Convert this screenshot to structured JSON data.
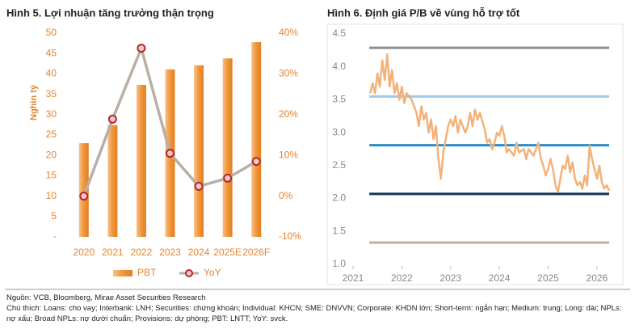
{
  "chart_data": [
    {
      "type": "combo",
      "title": "Hình 5. Lợi nhuận tăng trưởng thận trọng",
      "ylabel": "Nghìn tỷ",
      "categories": [
        "2020",
        "2021",
        "2022",
        "2023",
        "2024",
        "2025E",
        "2026F"
      ],
      "series": [
        {
          "name": "PBT",
          "type": "bar",
          "color": "#f0963a",
          "values": [
            23.0,
            27.4,
            37.3,
            41.1,
            42.1,
            43.8,
            47.8
          ]
        },
        {
          "name": "YoY",
          "type": "line",
          "axis": "y2",
          "color": "#b9afa6",
          "marker_color": "#b3262b",
          "values": [
            0,
            18.9,
            36.3,
            10.5,
            2.4,
            4.4,
            8.5
          ]
        }
      ],
      "ylim": [
        0,
        50
      ],
      "yticks": [
        {
          "value": 0,
          "label": "-"
        },
        5,
        10,
        15,
        20,
        25,
        30,
        35,
        40,
        45,
        50
      ],
      "y2lim": [
        -10,
        40
      ],
      "y2ticks": [
        {
          "value": -10,
          "label": "-10%"
        },
        {
          "value": 0,
          "label": "0%"
        },
        {
          "value": 10,
          "label": "10%"
        },
        {
          "value": 20,
          "label": "20%"
        },
        {
          "value": 30,
          "label": "30%"
        },
        {
          "value": 40,
          "label": "40%"
        }
      ],
      "legend": "bottom",
      "axis_color": "#e8842c"
    },
    {
      "type": "line",
      "title": "Hình 6. Định giá P/B về vùng hỗ trợ tốt",
      "color": "#f2b27a",
      "x": [
        2021.35,
        2021.4,
        2021.45,
        2021.5,
        2021.55,
        2021.6,
        2021.65,
        2021.7,
        2021.75,
        2021.8,
        2021.85,
        2021.9,
        2021.95,
        2022.0,
        2022.05,
        2022.1,
        2022.2,
        2022.3,
        2022.35,
        2022.4,
        2022.45,
        2022.5,
        2022.55,
        2022.6,
        2022.65,
        2022.7,
        2022.75,
        2022.8,
        2022.85,
        2022.9,
        2022.95,
        2023.0,
        2023.05,
        2023.1,
        2023.15,
        2023.2,
        2023.3,
        2023.35,
        2023.4,
        2023.45,
        2023.5,
        2023.55,
        2023.6,
        2023.7,
        2023.75,
        2023.8,
        2023.85,
        2023.9,
        2023.95,
        2024.0,
        2024.05,
        2024.1,
        2024.15,
        2024.2,
        2024.3,
        2024.35,
        2024.4,
        2024.5,
        2024.55,
        2024.6,
        2024.7,
        2024.8,
        2024.85,
        2024.9,
        2024.95,
        2025.0,
        2025.05,
        2025.1,
        2025.15,
        2025.2,
        2025.25,
        2025.3,
        2025.35,
        2025.4,
        2025.45,
        2025.5,
        2025.55,
        2025.6,
        2025.65,
        2025.7,
        2025.75,
        2025.8,
        2025.85,
        2025.9,
        2025.95,
        2026.0,
        2026.05,
        2026.1,
        2026.15,
        2026.2,
        2026.25
      ],
      "values": [
        3.6,
        3.75,
        3.6,
        3.9,
        3.7,
        4.1,
        3.8,
        4.19,
        3.7,
        3.95,
        3.6,
        3.75,
        3.5,
        3.7,
        3.45,
        3.6,
        3.5,
        3.3,
        3.1,
        3.4,
        3.2,
        3.3,
        3.0,
        3.2,
        2.9,
        3.1,
        2.6,
        2.3,
        2.7,
        2.9,
        3.1,
        3.2,
        3.1,
        3.25,
        3.0,
        3.2,
        3.0,
        3.1,
        3.3,
        3.1,
        3.35,
        3.2,
        3.3,
        3.05,
        2.85,
        2.9,
        2.75,
        2.85,
        3.0,
        2.95,
        3.1,
        2.95,
        2.7,
        2.75,
        2.65,
        2.85,
        2.7,
        2.75,
        2.6,
        2.75,
        2.65,
        2.85,
        2.6,
        2.5,
        2.35,
        2.45,
        2.6,
        2.45,
        2.2,
        2.1,
        2.3,
        2.5,
        2.45,
        2.65,
        2.4,
        2.55,
        2.3,
        2.2,
        2.25,
        2.15,
        2.35,
        2.2,
        2.8,
        2.6,
        2.45,
        2.3,
        2.5,
        2.25,
        2.15,
        2.2,
        2.12
      ],
      "hlines": [
        {
          "value": 4.29,
          "color": "#8c8c8c"
        },
        {
          "value": 3.55,
          "color": "#9fcbe8"
        },
        {
          "value": 2.81,
          "color": "#2b8cc4"
        },
        {
          "value": 2.07,
          "color": "#12315c"
        },
        {
          "value": 1.33,
          "color": "#c4ada0"
        }
      ],
      "xlim": [
        2021,
        2026.3
      ],
      "xticks": [
        2021,
        2022,
        2023,
        2024,
        2025,
        2026
      ],
      "ylim": [
        1.0,
        4.5
      ],
      "yticks": [
        {
          "value": 1.0,
          "label": "1.0"
        },
        1.5,
        {
          "value": 2.0,
          "label": "2.0"
        },
        2.5,
        {
          "value": 3.0,
          "label": "3.0"
        },
        3.5,
        {
          "value": 4.0,
          "label": "4.0"
        },
        4.5
      ]
    }
  ],
  "source": "Nguồn: VCB, Bloomberg, Mirae Asset Securities Research",
  "note": "Chú thích: Loans: cho vay; Interbank: LNH; Securities: chứng khoán; Individual: KHCN; SME: DNVVN; Corporate: KHDN lớn; Short-term: ngắn hạn; Medium: trung; Long: dài; NPLs: nợ xấu; Broad NPLs: nợ dưới chuẩn; Provisions: dự phòng; PBT: LNTT; YoY: svck."
}
